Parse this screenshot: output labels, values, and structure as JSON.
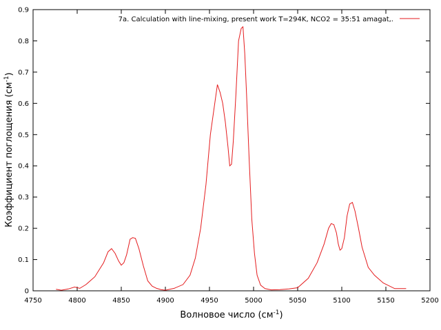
{
  "chart_data": {
    "type": "line",
    "title": "",
    "xlabel": "Волновое число (см",
    "xlabel_sup": "-1",
    "xlabel_end": ")",
    "ylabel": "Коэффициент поглощения (см",
    "ylabel_sup": "-1",
    "ylabel_end": ")",
    "xlim": [
      4750,
      5200
    ],
    "ylim": [
      0,
      0.9
    ],
    "xticks": [
      4750,
      4800,
      4850,
      4900,
      4950,
      5000,
      5050,
      5100,
      5150,
      5200
    ],
    "yticks": [
      0,
      0.1,
      0.2,
      0.3,
      0.4,
      0.5,
      0.6,
      0.7,
      0.8,
      0.9
    ],
    "grid": false,
    "legend_position": "top-right",
    "series": [
      {
        "name": "7a. Calculation with line-mixing, present work T=294K, NCO2 = 35:51 amagat,.",
        "color": "#e41a1c",
        "x": [
          4776,
          4782,
          4790,
          4797,
          4803,
          4810,
          4820,
          4830,
          4835,
          4839,
          4843,
          4847,
          4850,
          4853,
          4856,
          4860,
          4863,
          4866,
          4870,
          4875,
          4880,
          4885,
          4890,
          4895,
          4900,
          4910,
          4920,
          4928,
          4934,
          4940,
          4946,
          4951,
          4955,
          4959,
          4962,
          4965,
          4968,
          4971,
          4973,
          4975,
          4977,
          4980,
          4983,
          4986,
          4988,
          4990,
          4992,
          4995,
          4998,
          5001,
          5004,
          5008,
          5013,
          5020,
          5030,
          5040,
          5050,
          5062,
          5072,
          5080,
          5085,
          5088,
          5091,
          5094,
          5096,
          5098,
          5100,
          5103,
          5106,
          5109,
          5112,
          5115,
          5119,
          5123,
          5130,
          5137,
          5147,
          5160,
          5173
        ],
        "y": [
          0.005,
          0.002,
          0.006,
          0.012,
          0.008,
          0.02,
          0.045,
          0.09,
          0.125,
          0.135,
          0.12,
          0.095,
          0.082,
          0.09,
          0.115,
          0.165,
          0.17,
          0.168,
          0.135,
          0.08,
          0.032,
          0.015,
          0.008,
          0.004,
          0.002,
          0.008,
          0.02,
          0.05,
          0.105,
          0.2,
          0.34,
          0.5,
          0.58,
          0.66,
          0.635,
          0.6,
          0.54,
          0.46,
          0.4,
          0.405,
          0.48,
          0.63,
          0.8,
          0.84,
          0.845,
          0.76,
          0.63,
          0.42,
          0.23,
          0.12,
          0.05,
          0.018,
          0.007,
          0.003,
          0.004,
          0.006,
          0.01,
          0.04,
          0.09,
          0.15,
          0.2,
          0.215,
          0.212,
          0.185,
          0.15,
          0.13,
          0.135,
          0.17,
          0.24,
          0.278,
          0.283,
          0.255,
          0.2,
          0.14,
          0.075,
          0.05,
          0.025,
          0.007,
          0.007
        ]
      }
    ]
  }
}
